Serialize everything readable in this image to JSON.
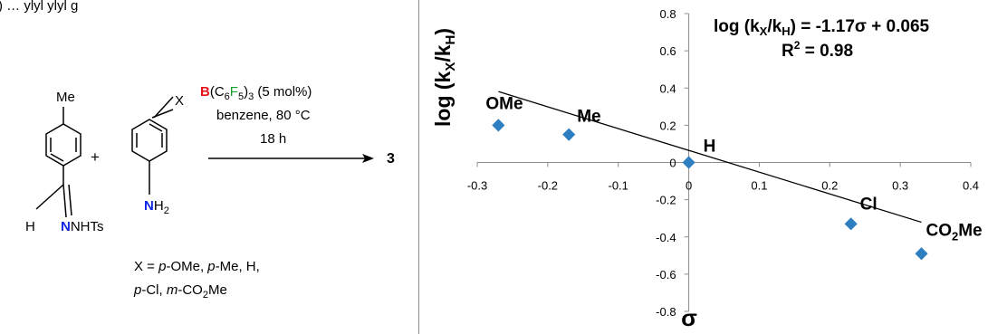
{
  "scheme": {
    "header_fragment": ") … ylyl ylyl g",
    "reagent1": {
      "methyl": "Me",
      "h": "H",
      "n": "N",
      "nhts": "NHTs"
    },
    "plus": "+",
    "reagent2": {
      "x": "X",
      "n": "N",
      "h2": "H",
      "h2_sub": "2"
    },
    "catalyst": {
      "b": "B",
      "c6": "(C",
      "c6_sub": "6",
      "f": "F",
      "f_sub": "5",
      "close": ")",
      "close_sub": "3",
      "loading": " (5 mol%)"
    },
    "solvent_temp": "benzene, 80 °C",
    "time": "18 h",
    "product": "3",
    "substituents_line1": {
      "p1": "X = ",
      "i1": "p",
      "p2": "-OMe, ",
      "i2": "p",
      "p3": "-Me, H,"
    },
    "substituents_line2": {
      "i1": "p",
      "p1": "-Cl, ",
      "i2": "m",
      "p2": "-CO",
      "sub": "2",
      "p3": "Me"
    },
    "colors": {
      "boron": "#e8141b",
      "fluorine": "#1a9e2e",
      "nitrogen": "#1026e6"
    }
  },
  "chart_data": {
    "type": "scatter",
    "xlabel": "σ",
    "ylabel": {
      "main": "log (k",
      "sub1": "X",
      "mid": "/k",
      "sub2": "H",
      "end": ")"
    },
    "xlim": [
      -0.3,
      0.4
    ],
    "ylim": [
      -0.8,
      0.8
    ],
    "x_ticks": [
      -0.3,
      -0.2,
      -0.1,
      0,
      0.1,
      0.2,
      0.3,
      0.4
    ],
    "x_tick_labels": [
      "-0.3",
      "-0.2",
      "-0.1",
      "0",
      "0.1",
      "0.2",
      "0.3",
      "0.4"
    ],
    "y_ticks": [
      -0.8,
      -0.6,
      -0.4,
      -0.2,
      0,
      0.2,
      0.4,
      0.6,
      0.8
    ],
    "y_tick_labels": [
      "-0.8",
      "-0.6",
      "-0.4",
      "-0.2",
      "0",
      "0.2",
      "0.4",
      "0.6",
      "0.8"
    ],
    "points": [
      {
        "x": -0.27,
        "y": 0.2,
        "label": "OMe"
      },
      {
        "x": -0.17,
        "y": 0.15,
        "label": "Me"
      },
      {
        "x": 0.0,
        "y": 0.0,
        "label": "H"
      },
      {
        "x": 0.23,
        "y": -0.33,
        "label": "Cl"
      },
      {
        "x": 0.33,
        "y": -0.49,
        "label": "CO",
        "label_sub": "2",
        "label_end": "Me"
      }
    ],
    "fit": {
      "slope": -1.17,
      "intercept": 0.065,
      "x_range": [
        -0.27,
        0.33
      ]
    },
    "equation": {
      "p1": "log (k",
      "s1": "X",
      "p2": "/k",
      "s2": "H",
      "p3": ") = -1.17σ + 0.065"
    },
    "r2": {
      "p1": "R",
      "sup": "2",
      "p2": " = 0.98"
    },
    "marker_color": "#2e7fc1",
    "grid": false
  }
}
